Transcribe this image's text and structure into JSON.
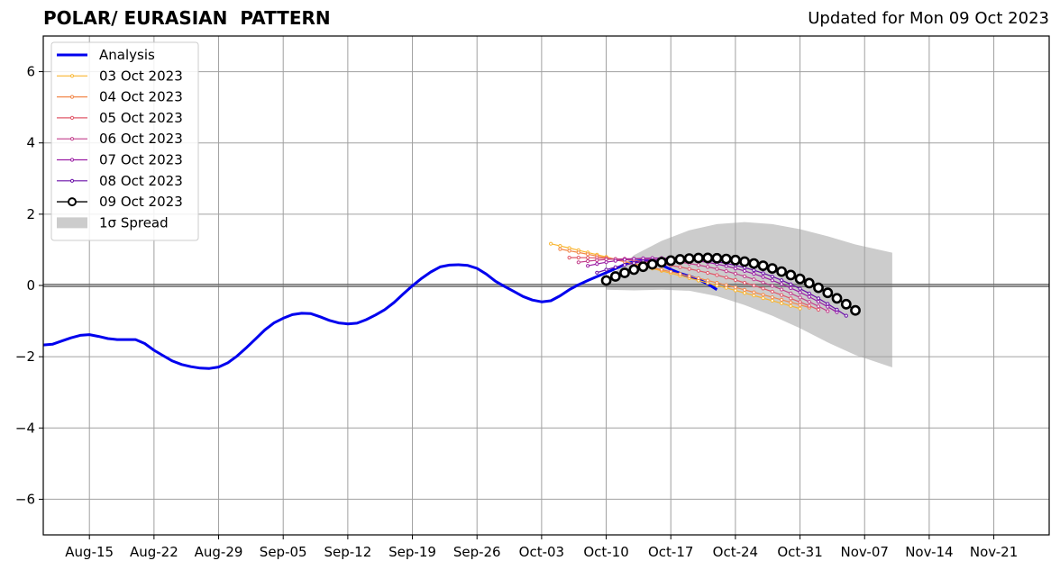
{
  "header": {
    "title": "POLAR/ EURASIAN  PATTERN",
    "subtitle": "Updated for Mon 09 Oct 2023"
  },
  "chart_data": {
    "type": "line",
    "title": "POLAR/ EURASIAN  PATTERN",
    "subtitle": "Updated for Mon 09 Oct 2023",
    "xlabel": "",
    "ylabel": "",
    "x_axis": {
      "type": "date",
      "range": [
        "2023-08-10",
        "2023-11-27"
      ],
      "ticks": [
        {
          "date": "2023-08-15",
          "label": "Aug-15"
        },
        {
          "date": "2023-08-22",
          "label": "Aug-22"
        },
        {
          "date": "2023-08-29",
          "label": "Aug-29"
        },
        {
          "date": "2023-09-05",
          "label": "Sep-05"
        },
        {
          "date": "2023-09-12",
          "label": "Sep-12"
        },
        {
          "date": "2023-09-19",
          "label": "Sep-19"
        },
        {
          "date": "2023-09-26",
          "label": "Sep-26"
        },
        {
          "date": "2023-10-03",
          "label": "Oct-03"
        },
        {
          "date": "2023-10-10",
          "label": "Oct-10"
        },
        {
          "date": "2023-10-17",
          "label": "Oct-17"
        },
        {
          "date": "2023-10-24",
          "label": "Oct-24"
        },
        {
          "date": "2023-10-31",
          "label": "Oct-31"
        },
        {
          "date": "2023-11-07",
          "label": "Nov-07"
        },
        {
          "date": "2023-11-14",
          "label": "Nov-14"
        },
        {
          "date": "2023-11-21",
          "label": "Nov-21"
        }
      ]
    },
    "y_axis": {
      "range": [
        -7,
        7
      ],
      "ticks": [
        {
          "value": 6,
          "label": "6"
        },
        {
          "value": 4,
          "label": "4"
        },
        {
          "value": 2,
          "label": "2"
        },
        {
          "value": 0,
          "label": "0"
        },
        {
          "value": -2,
          "label": "−2"
        },
        {
          "value": -4,
          "label": "−4"
        },
        {
          "value": -6,
          "label": "−6"
        }
      ]
    },
    "grid": true,
    "zero_line": true,
    "legend_position": "top-left",
    "legend": [
      {
        "key": "analysis",
        "label": "Analysis"
      },
      {
        "key": "f1003",
        "label": "03 Oct 2023"
      },
      {
        "key": "f1004",
        "label": "04 Oct 2023"
      },
      {
        "key": "f1005",
        "label": "05 Oct 2023"
      },
      {
        "key": "f1006",
        "label": "06 Oct 2023"
      },
      {
        "key": "f1007",
        "label": "07 Oct 2023"
      },
      {
        "key": "f1008",
        "label": "08 Oct 2023"
      },
      {
        "key": "f1009",
        "label": "09 Oct 2023"
      },
      {
        "key": "spread",
        "label": "1σ Spread"
      }
    ],
    "analysis": {
      "name": "Analysis",
      "color": "#0000ee",
      "start_date": "2023-08-10",
      "values": [
        -1.67,
        -1.65,
        -1.56,
        -1.47,
        -1.4,
        -1.38,
        -1.43,
        -1.49,
        -1.52,
        -1.52,
        -1.52,
        -1.63,
        -1.82,
        -1.97,
        -2.12,
        -2.22,
        -2.28,
        -2.32,
        -2.33,
        -2.29,
        -2.17,
        -1.98,
        -1.75,
        -1.5,
        -1.25,
        -1.05,
        -0.92,
        -0.82,
        -0.78,
        -0.79,
        -0.88,
        -0.98,
        -1.05,
        -1.08,
        -1.06,
        -0.96,
        -0.83,
        -0.68,
        -0.48,
        -0.24,
        -0.01,
        0.2,
        0.38,
        0.52,
        0.57,
        0.58,
        0.56,
        0.48,
        0.32,
        0.12,
        -0.03,
        -0.17,
        -0.31,
        -0.41,
        -0.46,
        -0.43,
        -0.29,
        -0.12,
        0.02,
        0.14,
        0.25,
        0.36,
        0.47,
        0.59,
        0.67,
        0.7,
        0.67,
        0.57,
        0.45,
        0.34,
        0.26,
        0.17,
        0.04,
        -0.12
      ]
    },
    "series": [
      {
        "name": "03 Oct 2023",
        "color": "#f9b631",
        "start_date": "2023-10-04",
        "end_date": "2023-10-31",
        "start_value": 1.17,
        "end_value": -0.65
      },
      {
        "name": "04 Oct 2023",
        "color": "#f2884b",
        "start_date": "2023-10-05",
        "end_date": "2023-11-01",
        "start_value": 1.02,
        "end_value": -0.62
      },
      {
        "name": "05 Oct 2023",
        "color": "#e0586a",
        "start_date": "2023-10-06",
        "end_date": "2023-11-02",
        "start_value": 0.78,
        "end_value": -0.68
      },
      {
        "name": "06 Oct 2023",
        "color": "#c23f8c",
        "start_date": "2023-10-07",
        "end_date": "2023-11-03",
        "start_value": 0.65,
        "end_value": -0.72
      },
      {
        "name": "07 Oct 2023",
        "color": "#9b1ea4",
        "start_date": "2023-10-08",
        "end_date": "2023-11-04",
        "start_value": 0.55,
        "end_value": -0.75
      },
      {
        "name": "08 Oct 2023",
        "color": "#6a0fa8",
        "start_date": "2023-10-09",
        "end_date": "2023-11-05",
        "start_value": 0.36,
        "end_value": -0.85
      },
      {
        "name": "09 Oct 2023",
        "color": "#000000",
        "start_date": "2023-10-10",
        "end_date": "2023-11-06",
        "start_value": 0.14,
        "end_value": -0.7
      }
    ],
    "forecast_peaks": [
      {
        "name": "03 Oct 2023",
        "peak_date": "2023-10-10",
        "peak_value": 0.8
      },
      {
        "name": "04 Oct 2023",
        "peak_date": "2023-10-11",
        "peak_value": 0.72
      },
      {
        "name": "05 Oct 2023",
        "peak_date": "2023-10-13",
        "peak_value": 0.7
      },
      {
        "name": "06 Oct 2023",
        "peak_date": "2023-10-15",
        "peak_value": 0.73
      },
      {
        "name": "07 Oct 2023",
        "peak_date": "2023-10-17",
        "peak_value": 0.76
      },
      {
        "name": "08 Oct 2023",
        "peak_date": "2023-10-19",
        "peak_value": 0.74
      },
      {
        "name": "09 Oct 2023",
        "peak_date": "2023-10-20",
        "peak_value": 0.77
      }
    ],
    "spread": {
      "name": "1σ Spread",
      "color": "#cccccc",
      "start_date": "2023-10-10",
      "end_date": "2023-11-10",
      "upper": [
        {
          "date": "2023-10-10",
          "value": 0.15
        },
        {
          "date": "2023-10-13",
          "value": 0.85
        },
        {
          "date": "2023-10-16",
          "value": 1.25
        },
        {
          "date": "2023-10-19",
          "value": 1.55
        },
        {
          "date": "2023-10-22",
          "value": 1.72
        },
        {
          "date": "2023-10-25",
          "value": 1.78
        },
        {
          "date": "2023-10-28",
          "value": 1.72
        },
        {
          "date": "2023-10-31",
          "value": 1.58
        },
        {
          "date": "2023-11-03",
          "value": 1.38
        },
        {
          "date": "2023-11-06",
          "value": 1.15
        },
        {
          "date": "2023-11-10",
          "value": 0.92
        }
      ],
      "lower": [
        {
          "date": "2023-10-10",
          "value": -0.12
        },
        {
          "date": "2023-10-13",
          "value": -0.14
        },
        {
          "date": "2023-10-16",
          "value": -0.12
        },
        {
          "date": "2023-10-19",
          "value": -0.15
        },
        {
          "date": "2023-10-22",
          "value": -0.3
        },
        {
          "date": "2023-10-25",
          "value": -0.55
        },
        {
          "date": "2023-10-28",
          "value": -0.85
        },
        {
          "date": "2023-10-31",
          "value": -1.2
        },
        {
          "date": "2023-11-03",
          "value": -1.6
        },
        {
          "date": "2023-11-06",
          "value": -1.95
        },
        {
          "date": "2023-11-10",
          "value": -2.3
        }
      ]
    }
  }
}
